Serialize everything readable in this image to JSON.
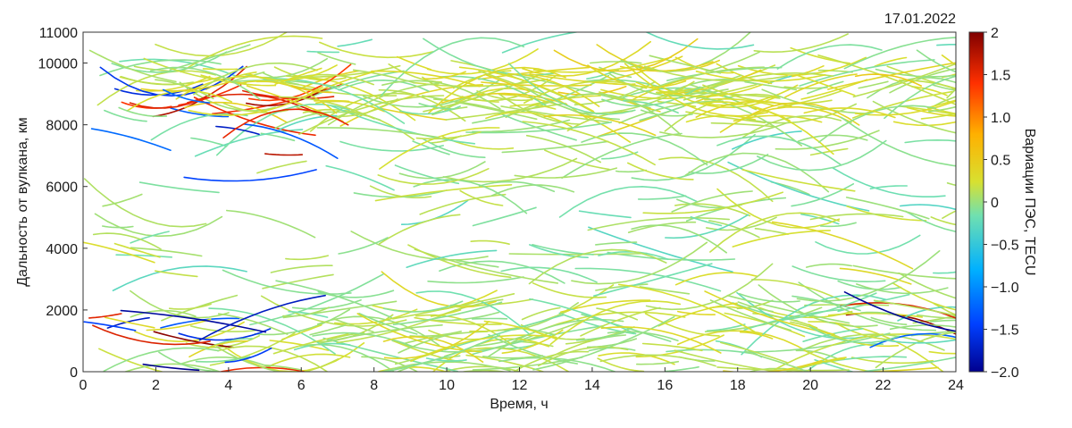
{
  "chart_data": {
    "type": "scatter",
    "title": "",
    "date": "17.01.2022",
    "xlabel": "Время, ч",
    "ylabel": "Дальность от вулкана, км",
    "xlim": [
      0,
      24
    ],
    "ylim": [
      0,
      11000
    ],
    "xticks": [
      0,
      2,
      4,
      6,
      8,
      10,
      12,
      14,
      16,
      18,
      20,
      22,
      24
    ],
    "yticks": [
      0,
      2000,
      4000,
      6000,
      8000,
      10000,
      11000
    ],
    "grid": false,
    "colorbar": {
      "label": "Вариации ПЭС, TECU",
      "range": [
        -2.0,
        2.0
      ],
      "ticks": [
        "2",
        "1.5",
        "1.0",
        "0.5",
        "0",
        "−0.5",
        "−1.0",
        "−1.5",
        "−2.0"
      ],
      "tick_values": [
        2,
        1.5,
        1.0,
        0.5,
        0,
        -0.5,
        -1.0,
        -1.5,
        -2.0
      ],
      "colormap": "jet",
      "colors": [
        "#00008f",
        "#0050ff",
        "#00c0ff",
        "#70e0a0",
        "#e0e020",
        "#ffa000",
        "#ff3000",
        "#800000"
      ]
    },
    "dense_bands_km": [
      {
        "from": 8200,
        "to": 9800,
        "mean_variation": 0.2
      },
      {
        "from": 0,
        "to": 2200,
        "mean_variation": 0.1
      }
    ],
    "strong_variation_regions": [
      {
        "time_h": [
          0,
          5
        ],
        "range_km": [
          0,
          2000
        ],
        "variation": "±2"
      },
      {
        "time_h": [
          1,
          6
        ],
        "range_km": [
          6000,
          9000
        ],
        "variation": "±2"
      },
      {
        "time_h": [
          22,
          24
        ],
        "range_km": [
          500,
          2500
        ],
        "variation": "±1.5"
      }
    ],
    "background_variation": 0.0
  }
}
